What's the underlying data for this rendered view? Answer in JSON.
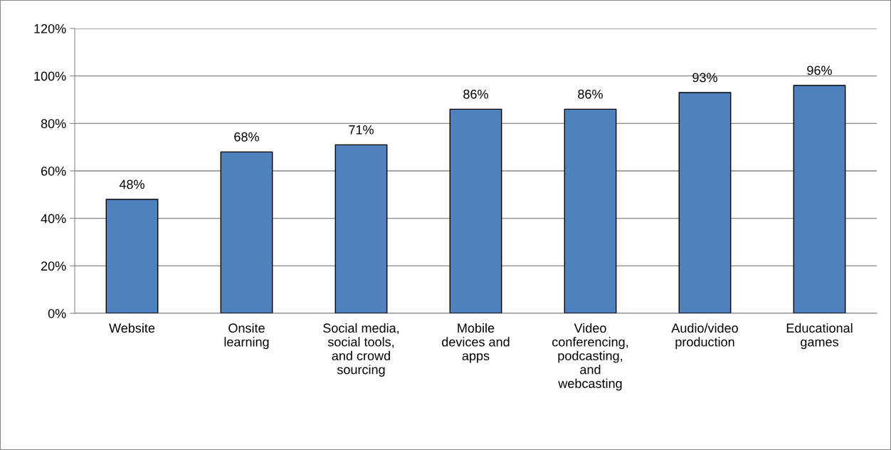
{
  "chart_data": {
    "type": "bar",
    "categories": [
      "Website",
      "Onsite\nlearning",
      "Social media,\nsocial tools,\nand crowd\nsourcing",
      "Mobile\ndevices and\napps",
      "Video\nconferencing,\npodcasting,\nand\nwebcasting",
      "Audio/video\nproduction",
      "Educational\ngames"
    ],
    "values": [
      48,
      68,
      71,
      86,
      86,
      93,
      96
    ],
    "value_labels": [
      "48%",
      "68%",
      "71%",
      "86%",
      "86%",
      "93%",
      "96%"
    ],
    "color": "#4f81bd",
    "ylim": [
      0,
      120
    ],
    "yticks": [
      {
        "value": 0,
        "label": "0%"
      },
      {
        "value": 20,
        "label": "20%"
      },
      {
        "value": 40,
        "label": "40%"
      },
      {
        "value": 60,
        "label": "60%"
      },
      {
        "value": 80,
        "label": "80%"
      },
      {
        "value": 100,
        "label": "100%"
      },
      {
        "value": 120,
        "label": "120%"
      }
    ],
    "grid": "y"
  }
}
